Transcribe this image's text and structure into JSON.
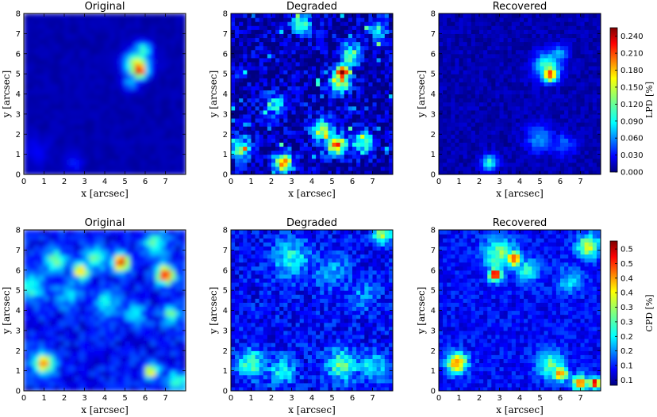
{
  "figure": {
    "rows": [
      {
        "quantity": "LPD",
        "colorbar": {
          "label": "LPD [%]",
          "ticks": [
            "0.000",
            "0.030",
            "0.060",
            "0.090",
            "0.120",
            "0.150",
            "0.180",
            "0.210",
            "0.240"
          ],
          "range": [
            0,
            0.255
          ]
        },
        "panels": [
          {
            "title": "Original",
            "xlabel": "x [arcsec]",
            "ylabel": "y [arcsec]"
          },
          {
            "title": "Degraded",
            "xlabel": "x [arcsec]",
            "ylabel": "y [arcsec]"
          },
          {
            "title": "Recovered",
            "xlabel": "x [arcsec]",
            "ylabel": "y [arcsec]"
          }
        ]
      },
      {
        "quantity": "CPD",
        "colorbar": {
          "label": "CPD [%]",
          "ticks": [
            "0.1",
            "0.1",
            "0.2",
            "0.2",
            "0.3",
            "0.3",
            "0.4",
            "0.4",
            "0.5",
            "0.5"
          ],
          "range": [
            0.04,
            0.59
          ]
        },
        "panels": [
          {
            "title": "Original",
            "xlabel": "x [arcsec]",
            "ylabel": "y [arcsec]"
          },
          {
            "title": "Degraded",
            "xlabel": "x [arcsec]",
            "ylabel": "y [arcsec]"
          },
          {
            "title": "Recovered",
            "xlabel": "x [arcsec]",
            "ylabel": "y [arcsec]"
          }
        ]
      }
    ],
    "x_ticks": [
      "0",
      "1",
      "2",
      "3",
      "4",
      "5",
      "6",
      "7"
    ],
    "y_ticks": [
      "0",
      "1",
      "2",
      "3",
      "4",
      "5",
      "6",
      "7",
      "8"
    ]
  },
  "chart_data": [
    {
      "type": "heatmap",
      "title": "Original",
      "quantity": "LPD [%]",
      "xlabel": "x [arcsec]",
      "ylabel": "y [arcsec]",
      "xlim": [
        0,
        8
      ],
      "ylim": [
        0,
        8
      ],
      "colormap": "jet",
      "vlim": [
        0,
        0.255
      ],
      "features": [
        {
          "x": 5.7,
          "y": 5.2,
          "value": 0.25
        },
        {
          "x": 5.9,
          "y": 6.1,
          "value": 0.12
        },
        {
          "x": 2.6,
          "y": 0.6,
          "value": 0.03
        }
      ]
    },
    {
      "type": "heatmap",
      "title": "Degraded",
      "quantity": "LPD [%]",
      "xlabel": "x [arcsec]",
      "ylabel": "y [arcsec]",
      "xlim": [
        0,
        8
      ],
      "ylim": [
        0,
        8
      ],
      "colormap": "jet",
      "vlim": [
        0,
        0.255
      ],
      "features": [
        {
          "x": 5.6,
          "y": 5.1,
          "value": 0.24
        },
        {
          "x": 2.6,
          "y": 0.5,
          "value": 0.2
        },
        {
          "x": 5.2,
          "y": 1.6,
          "value": 0.21
        },
        {
          "x": 4.7,
          "y": 2.2,
          "value": 0.14
        }
      ]
    },
    {
      "type": "heatmap",
      "title": "Recovered",
      "quantity": "LPD [%]",
      "xlabel": "x [arcsec]",
      "ylabel": "y [arcsec]",
      "xlim": [
        0,
        8
      ],
      "ylim": [
        0,
        8
      ],
      "colormap": "jet",
      "vlim": [
        0,
        0.255
      ],
      "features": [
        {
          "x": 5.5,
          "y": 5.0,
          "value": 0.21
        },
        {
          "x": 2.5,
          "y": 0.6,
          "value": 0.1
        },
        {
          "x": 5.0,
          "y": 1.8,
          "value": 0.07
        }
      ]
    },
    {
      "type": "heatmap",
      "title": "Original",
      "quantity": "CPD [%]",
      "xlabel": "x [arcsec]",
      "ylabel": "y [arcsec]",
      "xlim": [
        0,
        8
      ],
      "ylim": [
        0,
        8
      ],
      "colormap": "jet",
      "vlim": [
        0.04,
        0.59
      ],
      "features": [
        {
          "x": 4.8,
          "y": 6.4,
          "value": 0.58
        },
        {
          "x": 7.0,
          "y": 5.8,
          "value": 0.55
        },
        {
          "x": 1.0,
          "y": 1.4,
          "value": 0.45
        },
        {
          "x": 2.8,
          "y": 6.0,
          "value": 0.4
        },
        {
          "x": 6.3,
          "y": 1.0,
          "value": 0.38
        }
      ]
    },
    {
      "type": "heatmap",
      "title": "Degraded",
      "quantity": "CPD [%]",
      "xlabel": "x [arcsec]",
      "ylabel": "y [arcsec]",
      "xlim": [
        0,
        8
      ],
      "ylim": [
        0,
        8
      ],
      "colormap": "jet",
      "vlim": [
        0.04,
        0.59
      ],
      "features": [
        {
          "x": 1.0,
          "y": 1.4,
          "value": 0.3
        },
        {
          "x": 5.5,
          "y": 1.3,
          "value": 0.3
        },
        {
          "x": 3.0,
          "y": 6.5,
          "value": 0.25
        },
        {
          "x": 7.5,
          "y": 7.8,
          "value": 0.35
        }
      ]
    },
    {
      "type": "heatmap",
      "title": "Recovered",
      "quantity": "CPD [%]",
      "xlabel": "x [arcsec]",
      "ylabel": "y [arcsec]",
      "xlim": [
        0,
        8
      ],
      "ylim": [
        0,
        8
      ],
      "colormap": "jet",
      "vlim": [
        0.04,
        0.59
      ],
      "features": [
        {
          "x": 2.8,
          "y": 5.8,
          "value": 0.55
        },
        {
          "x": 3.7,
          "y": 6.6,
          "value": 0.5
        },
        {
          "x": 0.9,
          "y": 1.4,
          "value": 0.45
        },
        {
          "x": 7.7,
          "y": 0.4,
          "value": 0.57
        },
        {
          "x": 6.0,
          "y": 0.9,
          "value": 0.45
        }
      ]
    }
  ]
}
